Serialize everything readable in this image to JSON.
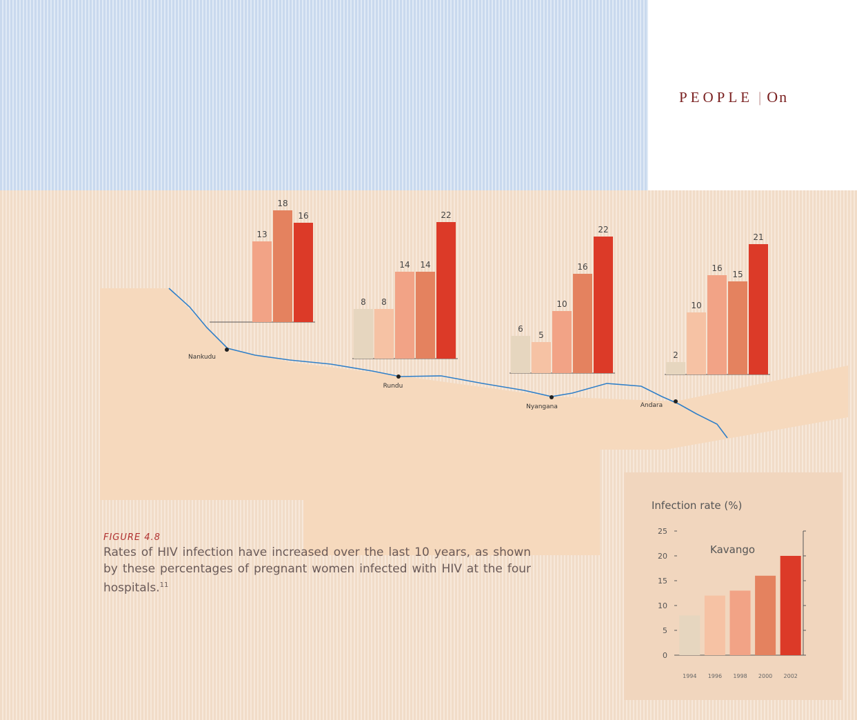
{
  "header": {
    "section": "PEOPLE",
    "divider": "|",
    "topic": "On"
  },
  "map": {
    "hospitals": [
      {
        "name": "Nankudu",
        "values": [
          null,
          null,
          13,
          18,
          16
        ]
      },
      {
        "name": "Rundu",
        "values": [
          8,
          8,
          14,
          14,
          22
        ]
      },
      {
        "name": "Nyangana",
        "values": [
          6,
          5,
          10,
          16,
          22
        ]
      },
      {
        "name": "Andara",
        "values": [
          2,
          10,
          16,
          15,
          21
        ]
      }
    ]
  },
  "chart_data": {
    "type": "bar",
    "title": "Infection rate (%)",
    "annotation": "Kavango",
    "categories": [
      "1994",
      "1996",
      "1998",
      "2000",
      "2002"
    ],
    "values": [
      8,
      12,
      13,
      16,
      20
    ],
    "colors": [
      "#e6d6bf",
      "#f6c2a4",
      "#f2a386",
      "#e4825f",
      "#dc3a28"
    ],
    "ylim": [
      0,
      25
    ],
    "yticks": [
      0,
      5,
      10,
      15,
      20,
      25
    ]
  },
  "caption": {
    "label": "FIGURE 4.8",
    "text": "Rates of HIV infection have increased over the last 10 years, as shown by these percentages of pregnant women infected with HIV at the four hospitals.",
    "footnote": "11"
  }
}
